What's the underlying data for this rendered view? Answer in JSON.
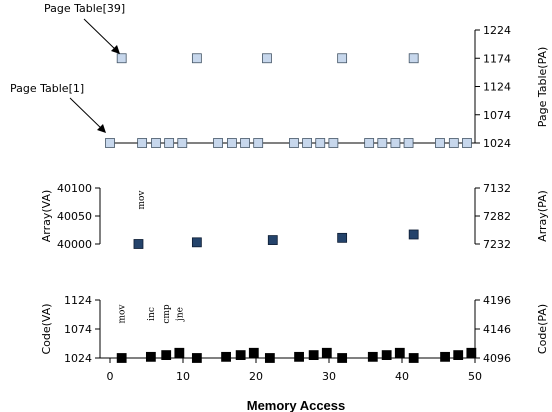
{
  "chart_data": {
    "type": "scatter",
    "xlabel": "Memory Access",
    "xlim": [
      0,
      50
    ],
    "xticks": [
      0,
      10,
      20,
      30,
      40,
      50
    ],
    "colors": {
      "page_table": "#c7d7ec",
      "array": "#24436b",
      "code": "#000000"
    },
    "panels": [
      {
        "id": "page-table",
        "ylabel_right": "Page Table(PA)",
        "ylim": [
          1024,
          1224
        ],
        "yticks": [
          1024,
          1074,
          1124,
          1174,
          1224
        ],
        "annotations": [
          {
            "text": "Page Table[39]",
            "x": 1.6,
            "y": 1174
          },
          {
            "text": "Page Table[1]",
            "x": 0,
            "y": 1024
          }
        ],
        "series": [
          {
            "x": [
              1.6,
              11.9,
              21.5,
              31.8,
              41.6
            ],
            "y": [
              1174,
              1174,
              1174,
              1174,
              1174
            ]
          },
          {
            "x": [
              0,
              4.4,
              6.3,
              8.1,
              9.9,
              14.8,
              16.7,
              18.5,
              20.3,
              25.2,
              27.0,
              28.8,
              30.6,
              35.5,
              37.3,
              39.1,
              40.9,
              45.2,
              47.1,
              48.9
            ],
            "y": [
              1024,
              1024,
              1024,
              1024,
              1024,
              1024,
              1024,
              1024,
              1024,
              1024,
              1024,
              1024,
              1024,
              1024,
              1024,
              1024,
              1024,
              1024,
              1024,
              1024
            ]
          }
        ]
      },
      {
        "id": "array",
        "ylabel_left": "Array(VA)",
        "ylabel_right": "Array(PA)",
        "ylim": [
          40000,
          40100
        ],
        "yticks_left": [
          40000,
          40050,
          40100
        ],
        "yticks_right": [
          "7232",
          "7282",
          "7132"
        ],
        "annotations": [
          {
            "text": "mov",
            "x": 3.9
          }
        ],
        "series": [
          {
            "x": [
              3.9,
              11.9,
              22.3,
              31.8,
              41.6
            ],
            "y": [
              40000,
              40003,
              40007,
              40011,
              40017
            ]
          }
        ]
      },
      {
        "id": "code",
        "ylabel_left": "Code(VA)",
        "ylabel_right": "Code(PA)",
        "ylim": [
          1024,
          1124
        ],
        "yticks_left": [
          1024,
          1074,
          1124
        ],
        "yticks_right": [
          4096,
          4146,
          4196
        ],
        "annotations": [
          {
            "text": "mov",
            "x": 1.6
          },
          {
            "text": "inc",
            "x": 5.6
          },
          {
            "text": "cmp",
            "x": 7.7
          },
          {
            "text": "jne",
            "x": 9.5
          }
        ],
        "series": [
          {
            "x": [
              1.6,
              5.6,
              7.7,
              9.5,
              11.9,
              15.9,
              17.9,
              19.7,
              21.9,
              25.9,
              27.9,
              29.7,
              31.8,
              36.0,
              37.9,
              39.7,
              41.6,
              45.9,
              47.7,
              49.5
            ],
            "y": [
              1024,
              1026,
              1029,
              1033,
              1024,
              1026,
              1029,
              1033,
              1024,
              1026,
              1029,
              1033,
              1024,
              1026,
              1029,
              1033,
              1024,
              1026,
              1029,
              1033
            ]
          }
        ]
      }
    ]
  }
}
